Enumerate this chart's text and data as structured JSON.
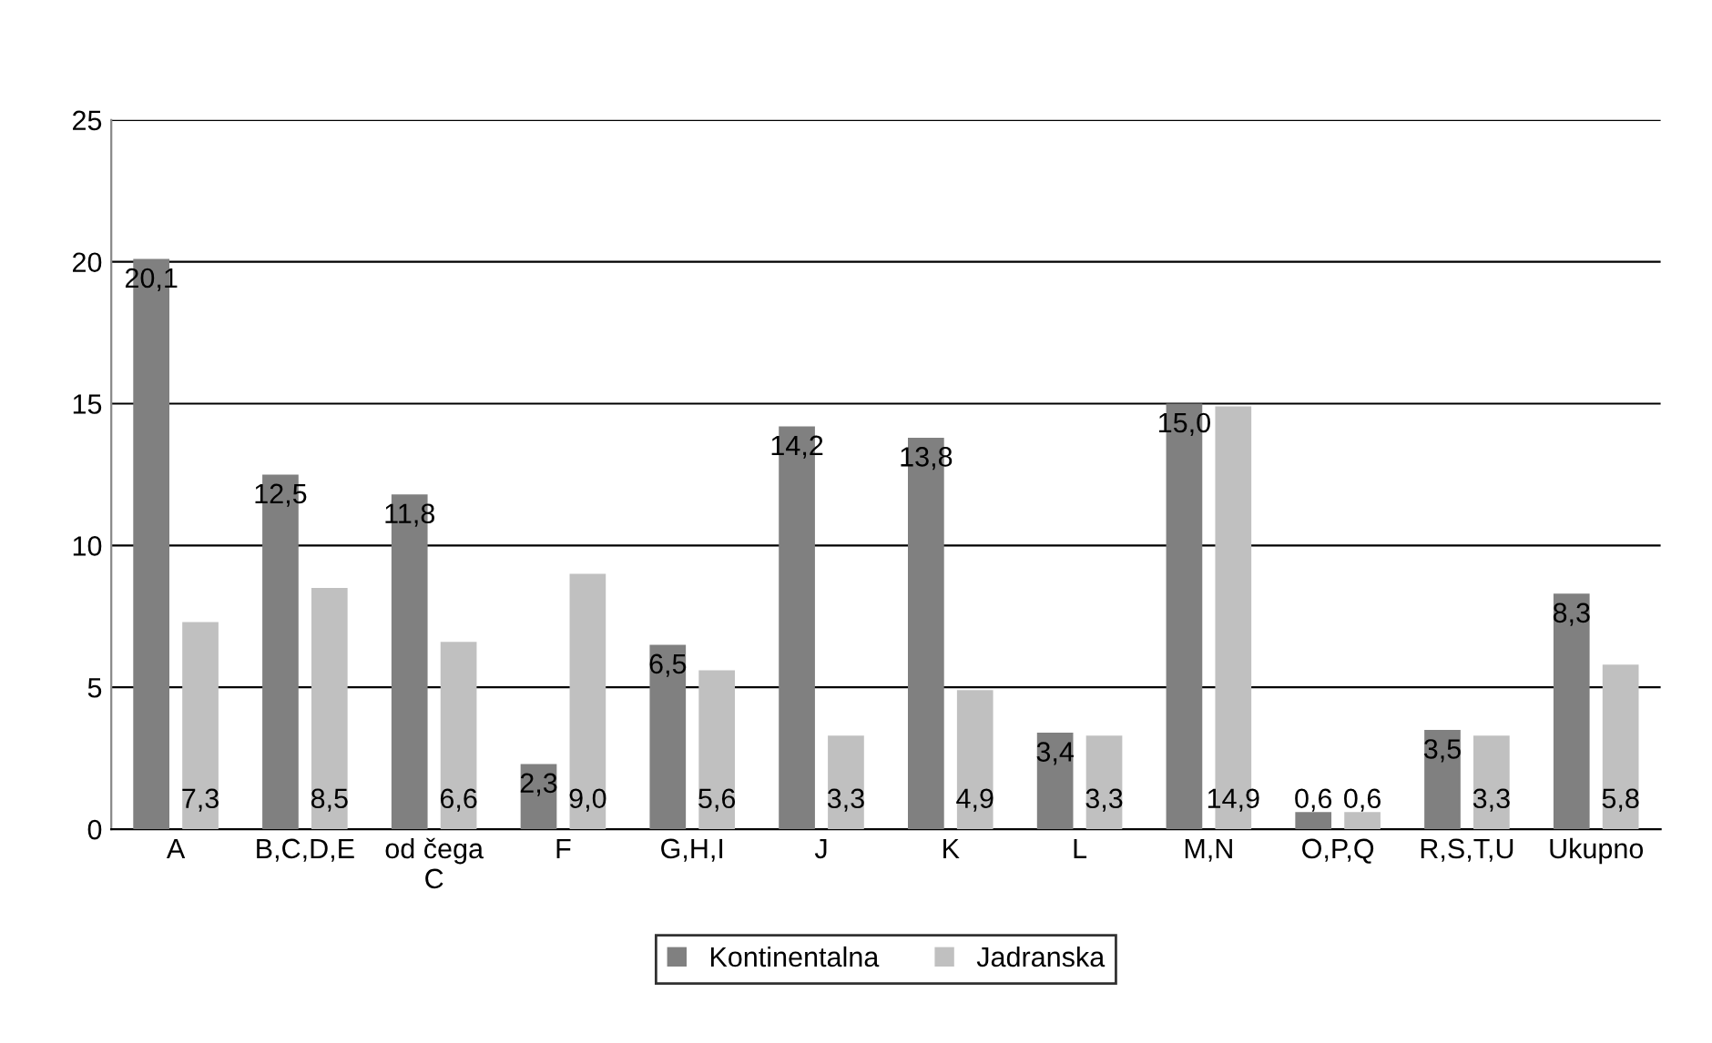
{
  "chart_data": {
    "type": "bar",
    "categories": [
      "A",
      "B,C,D,E",
      "od čega\nC",
      "F",
      "G,H,I",
      "J",
      "K",
      "L",
      "M,N",
      "O,P,Q",
      "R,S,T,U",
      "Ukupno"
    ],
    "series": [
      {
        "name": "Kontinentalna",
        "color": "#808080",
        "values": [
          20.1,
          12.5,
          11.8,
          2.3,
          6.5,
          14.2,
          13.8,
          3.4,
          15.0,
          0.6,
          3.5,
          8.3
        ],
        "value_labels": [
          "20,1",
          "12,5",
          "11,8",
          "2,3",
          "6,5",
          "14,2",
          "13,8",
          "3,4",
          "15,0",
          "0,6",
          "3,5",
          "8,3"
        ]
      },
      {
        "name": "Jadranska",
        "color": "#c0c0c0",
        "values": [
          7.3,
          8.5,
          6.6,
          9.0,
          5.6,
          3.3,
          4.9,
          3.3,
          14.9,
          0.6,
          3.3,
          5.8
        ],
        "value_labels": [
          "7,3",
          "8,5",
          "6,6",
          "9,0",
          "5,6",
          "3,3",
          "4,9",
          "3,3",
          "14,9",
          "0,6",
          "3,3",
          "5,8"
        ]
      }
    ],
    "ylim": [
      0,
      25
    ],
    "yticks": [
      0,
      5,
      10,
      15,
      20,
      25
    ],
    "grid": "y",
    "legend": "bottom"
  }
}
